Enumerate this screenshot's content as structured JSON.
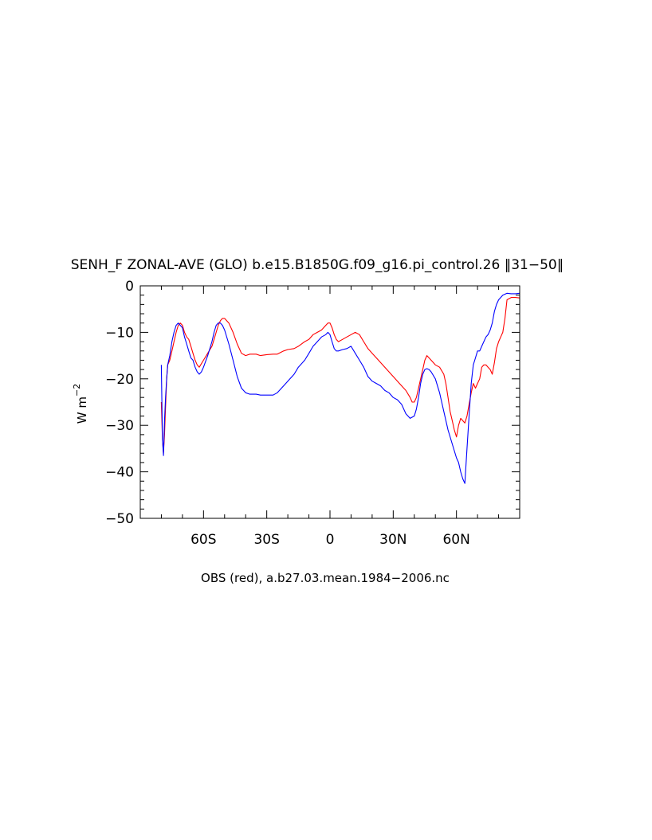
{
  "chart_data": {
    "type": "line",
    "title": "SENH_F ZONAL-AVE (GLO) b.e15.B1850G.f09_g16.pi_control.26 ‖31−50‖",
    "ylabel": "W m",
    "ylabel_exponent": "−2",
    "xlabel": "OBS (red), a.b27.03.mean.1984−2006.nc",
    "xlim": [
      -90,
      90
    ],
    "ylim": [
      -50,
      0
    ],
    "x_ticks": [
      {
        "value": -60,
        "label": "60S"
      },
      {
        "value": -30,
        "label": "30S"
      },
      {
        "value": 0,
        "label": "0"
      },
      {
        "value": 30,
        "label": "30N"
      },
      {
        "value": 60,
        "label": "60N"
      }
    ],
    "y_ticks": [
      {
        "value": 0,
        "label": "0"
      },
      {
        "value": -10,
        "label": "−10"
      },
      {
        "value": -20,
        "label": "−20"
      },
      {
        "value": -30,
        "label": "−30"
      },
      {
        "value": -40,
        "label": "−40"
      },
      {
        "value": -50,
        "label": "−50"
      }
    ],
    "grid": false,
    "series": [
      {
        "color": "#ff0000",
        "x": [
          -80,
          -79.5,
          -79,
          -78.5,
          -78,
          -77.5,
          -77,
          -76,
          -75,
          -74,
          -73,
          -72,
          -71,
          -70,
          -69,
          -68,
          -67,
          -66,
          -65,
          -64,
          -63,
          -62,
          -60,
          -58,
          -56,
          -55,
          -54,
          -53,
          -52,
          -51,
          -50,
          -48,
          -46,
          -44,
          -42,
          -40,
          -38,
          -35,
          -33,
          -30,
          -27,
          -25,
          -22,
          -20,
          -17,
          -15,
          -12,
          -10,
          -8,
          -6,
          -4,
          -2,
          -1,
          0,
          1,
          2,
          3,
          4,
          6,
          8,
          10,
          12,
          14,
          16,
          18,
          20,
          22,
          24,
          26,
          28,
          30,
          32,
          34,
          36,
          38,
          39,
          40,
          41,
          42,
          44,
          45,
          46,
          47,
          48,
          50,
          52,
          54,
          55,
          56,
          57,
          58,
          59,
          60,
          61,
          62,
          63,
          64,
          65,
          66,
          67,
          68,
          69,
          70,
          71,
          72,
          73,
          74,
          75,
          76,
          77,
          78,
          79,
          80,
          81,
          82,
          83,
          84,
          86,
          88,
          90
        ],
        "y": [
          -25,
          -33,
          -36,
          -32,
          -26,
          -20,
          -17,
          -16,
          -14,
          -12,
          -10,
          -8.5,
          -8,
          -8.5,
          -10,
          -11,
          -11.5,
          -13,
          -14.5,
          -16,
          -17,
          -17.5,
          -16,
          -14.5,
          -13,
          -11.5,
          -10,
          -8.5,
          -7.5,
          -7,
          -7,
          -8,
          -10,
          -12.5,
          -14.5,
          -15,
          -14.7,
          -14.7,
          -15,
          -14.8,
          -14.7,
          -14.7,
          -14,
          -13.7,
          -13.5,
          -13,
          -12,
          -11.5,
          -10.5,
          -10,
          -9.5,
          -8.5,
          -8,
          -8,
          -9,
          -10.5,
          -11.5,
          -12,
          -11.5,
          -11,
          -10.5,
          -10,
          -10.5,
          -12,
          -13.5,
          -14.5,
          -15.5,
          -16.5,
          -17.5,
          -18.5,
          -19.5,
          -20.5,
          -21.5,
          -22.5,
          -24,
          -25,
          -25,
          -24,
          -22,
          -18,
          -16,
          -15,
          -15.5,
          -16,
          -17,
          -17.5,
          -19,
          -21,
          -24,
          -27,
          -29,
          -31,
          -32.5,
          -30,
          -28.5,
          -29,
          -29.5,
          -28,
          -25.5,
          -23,
          -21,
          -22,
          -21,
          -20,
          -17.5,
          -17,
          -17,
          -17.5,
          -18,
          -19,
          -16.5,
          -13.5,
          -12,
          -11,
          -10,
          -7,
          -3,
          -2.5,
          -2.5,
          -2.6
        ]
      },
      {
        "color": "#0000ff",
        "x": [
          -80,
          -79.5,
          -79,
          -78.5,
          -78,
          -77.5,
          -77,
          -76,
          -75,
          -74,
          -73,
          -72,
          -71,
          -70,
          -69,
          -68,
          -67,
          -66,
          -65,
          -64,
          -63,
          -62,
          -61,
          -60,
          -58,
          -56,
          -55,
          -54,
          -53,
          -52,
          -51,
          -50,
          -48,
          -46,
          -44,
          -42,
          -40,
          -38,
          -35,
          -33,
          -30,
          -27,
          -25,
          -22,
          -20,
          -17,
          -15,
          -12,
          -10,
          -8,
          -6,
          -4,
          -2,
          -1,
          0,
          1,
          2,
          3,
          4,
          6,
          8,
          10,
          12,
          14,
          16,
          18,
          20,
          22,
          24,
          26,
          28,
          30,
          32,
          34,
          36,
          38,
          40,
          41,
          42,
          43,
          44,
          45,
          46,
          47,
          48,
          50,
          52,
          54,
          56,
          58,
          60,
          61,
          62,
          63,
          64,
          65,
          66,
          67,
          68,
          69,
          70,
          71,
          72,
          73,
          74,
          75,
          76,
          77,
          78,
          79,
          80,
          81,
          82,
          83,
          84,
          86,
          88,
          90
        ],
        "y": [
          -17,
          -33,
          -36.5,
          -29,
          -24,
          -20,
          -17,
          -15,
          -12,
          -10,
          -8.5,
          -8,
          -8.5,
          -9,
          -11,
          -12.5,
          -14,
          -15.5,
          -16,
          -17.5,
          -18.5,
          -19,
          -18.5,
          -17.5,
          -15,
          -12,
          -10,
          -8.5,
          -8,
          -8,
          -8.5,
          -9.5,
          -12.5,
          -16,
          -19.5,
          -22,
          -23,
          -23.3,
          -23.3,
          -23.5,
          -23.5,
          -23.5,
          -23,
          -21.5,
          -20.5,
          -19,
          -17.5,
          -16,
          -14.5,
          -13,
          -12,
          -11,
          -10.5,
          -10,
          -10.5,
          -12,
          -13.5,
          -14,
          -14,
          -13.7,
          -13.5,
          -13,
          -14.5,
          -16,
          -17.5,
          -19.5,
          -20.5,
          -21,
          -21.5,
          -22.5,
          -23,
          -24,
          -24.5,
          -25.5,
          -27.5,
          -28.5,
          -28,
          -26.5,
          -24,
          -21,
          -19,
          -18,
          -17.8,
          -18,
          -18.5,
          -20,
          -23,
          -27,
          -31,
          -34,
          -37,
          -38,
          -40,
          -41.5,
          -42.5,
          -35,
          -28,
          -21,
          -17,
          -15.5,
          -14,
          -14,
          -13,
          -12,
          -11,
          -10.5,
          -9.5,
          -8,
          -5.5,
          -4,
          -3,
          -2.5,
          -2,
          -1.8,
          -1.6,
          -1.7,
          -1.7,
          -1.6
        ]
      }
    ]
  }
}
